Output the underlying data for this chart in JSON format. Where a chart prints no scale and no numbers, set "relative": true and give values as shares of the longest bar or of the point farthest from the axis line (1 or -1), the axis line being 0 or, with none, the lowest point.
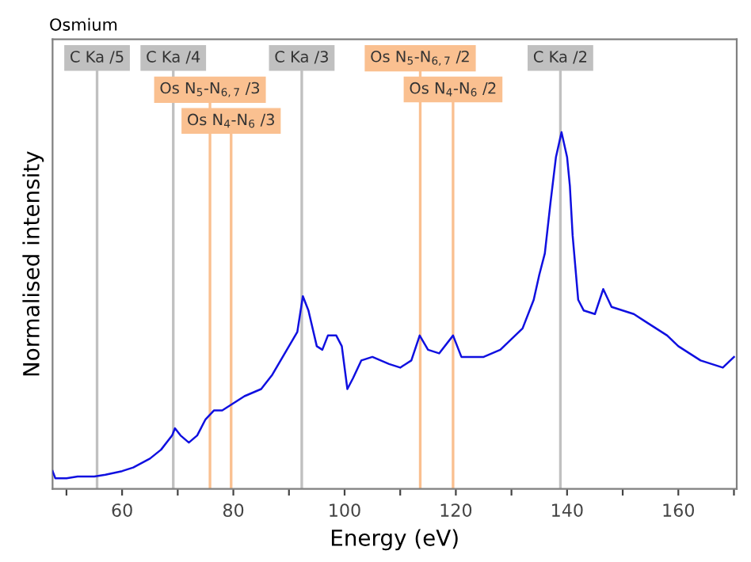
{
  "chart_data": {
    "type": "line",
    "relative": true,
    "title": "Osmium",
    "xlabel": "Energy (eV)",
    "ylabel": "Normalised intensity",
    "xlim": [
      47.5,
      170.5
    ],
    "xticks": [
      {
        "value": 50,
        "label": null
      },
      60,
      {
        "value": 70,
        "label": null
      },
      80,
      {
        "value": 90,
        "label": null
      },
      100,
      {
        "value": 110,
        "label": null
      },
      120,
      {
        "value": 130,
        "label": null
      },
      140,
      {
        "value": 150,
        "label": null
      },
      160,
      {
        "value": 170,
        "label": null
      }
    ],
    "grid": false,
    "legend": false,
    "marker": "none",
    "line_style": "solid",
    "series": [
      {
        "color": "#1010e0",
        "x": [
          47.5,
          48,
          50,
          52,
          55,
          57,
          60,
          62,
          65,
          67,
          69,
          69.5,
          70.5,
          72,
          73.5,
          75,
          76.5,
          78,
          80,
          82,
          85,
          87,
          90,
          91.5,
          92.5,
          93.5,
          95,
          96,
          97,
          98.5,
          99.5,
          100.5,
          101.5,
          103,
          105,
          108,
          110,
          112,
          113.5,
          115,
          117,
          119.5,
          121,
          123,
          125,
          128,
          130,
          132,
          134,
          135,
          136,
          137,
          138,
          139,
          140,
          140.5,
          141,
          142,
          143,
          145,
          146.5,
          148,
          150,
          152,
          154,
          156,
          158,
          160,
          162,
          164,
          166,
          168,
          170
        ],
        "values": [
          0.05,
          0.03,
          0.03,
          0.035,
          0.035,
          0.04,
          0.05,
          0.06,
          0.085,
          0.11,
          0.15,
          0.17,
          0.15,
          0.13,
          0.15,
          0.195,
          0.22,
          0.22,
          0.24,
          0.26,
          0.28,
          0.32,
          0.4,
          0.44,
          0.54,
          0.5,
          0.4,
          0.39,
          0.43,
          0.43,
          0.4,
          0.28,
          0.31,
          0.36,
          0.37,
          0.35,
          0.34,
          0.36,
          0.43,
          0.39,
          0.38,
          0.43,
          0.37,
          0.37,
          0.37,
          0.39,
          0.42,
          0.45,
          0.53,
          0.6,
          0.66,
          0.8,
          0.93,
          1.0,
          0.93,
          0.85,
          0.71,
          0.53,
          0.5,
          0.49,
          0.56,
          0.51,
          0.5,
          0.49,
          0.47,
          0.45,
          0.43,
          0.4,
          0.38,
          0.36,
          0.35,
          0.34,
          0.37
        ]
      }
    ],
    "ref_lines": [
      {
        "axis": "x",
        "value": 55.5,
        "label": "C Ka /5",
        "color": "#c0c0c0"
      },
      {
        "axis": "x",
        "value": 69.2,
        "label": "C Ka /4",
        "color": "#c0c0c0"
      },
      {
        "axis": "x",
        "value": 75.8,
        "label": "Os N$_{5}$-N$_{6,7}$ /3",
        "color": "#fac090"
      },
      {
        "axis": "x",
        "value": 79.6,
        "label": "Os N$_{4}$-N$_{6}$ /3",
        "color": "#fac090"
      },
      {
        "axis": "x",
        "value": 92.3,
        "label": "C Ka /3",
        "color": "#c0c0c0"
      },
      {
        "axis": "x",
        "value": 113.6,
        "label": "Os N$_{5}$-N$_{6,7}$ /2",
        "color": "#fac090"
      },
      {
        "axis": "x",
        "value": 119.5,
        "label": "Os N$_{4}$-N$_{6}$ /2",
        "color": "#fac090"
      },
      {
        "axis": "x",
        "value": 138.8,
        "label": "C Ka /2",
        "color": "#c0c0c0"
      }
    ]
  }
}
